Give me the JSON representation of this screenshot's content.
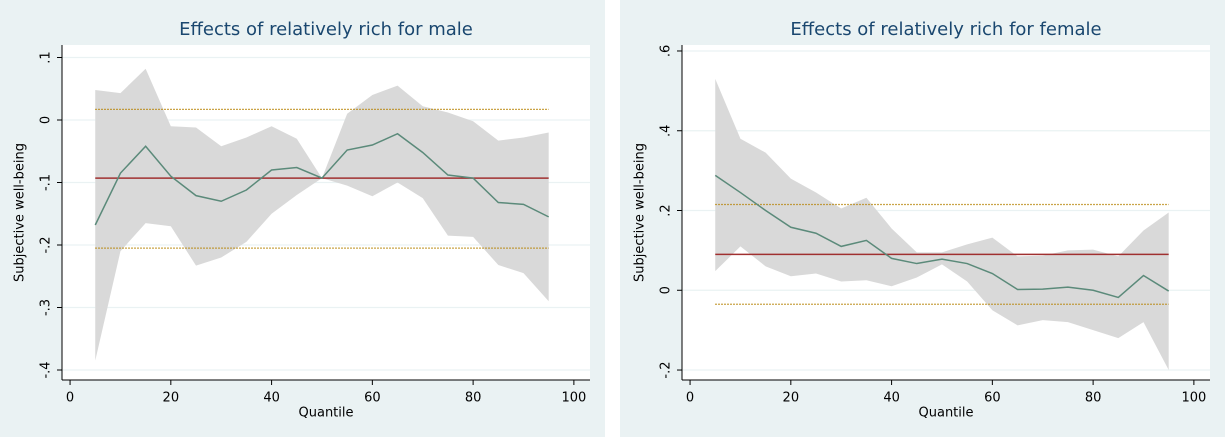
{
  "chart_data": [
    {
      "type": "line",
      "title": "Effects of relatively rich for male",
      "xlabel": "Quantile",
      "ylabel": "Subjective well-being",
      "x": [
        5,
        10,
        15,
        20,
        25,
        30,
        35,
        40,
        45,
        50,
        55,
        60,
        65,
        70,
        75,
        80,
        85,
        90,
        95
      ],
      "xlim": [
        -1.6,
        103.2
      ],
      "xticks": [
        0,
        20,
        40,
        60,
        80,
        100
      ],
      "ylim": [
        -0.416,
        0.12
      ],
      "yticks": [
        {
          "value": -0.4,
          "label": "-.4"
        },
        {
          "value": -0.3,
          "label": "-.3"
        },
        {
          "value": -0.2,
          "label": "-.2"
        },
        {
          "value": -0.1,
          "label": "-.1"
        },
        0,
        {
          "value": 0.1,
          "label": ".1"
        }
      ],
      "grid": true,
      "band": {
        "color": "#d9d9d9",
        "upper": [
          0.048,
          0.043,
          0.082,
          -0.01,
          -0.012,
          -0.042,
          -0.028,
          -0.01,
          -0.03,
          -0.093,
          0.01,
          0.04,
          0.055,
          0.022,
          0.012,
          -0.002,
          -0.033,
          -0.028,
          -0.02
        ],
        "lower": [
          -0.385,
          -0.21,
          -0.165,
          -0.17,
          -0.233,
          -0.22,
          -0.195,
          -0.15,
          -0.12,
          -0.093,
          -0.105,
          -0.122,
          -0.1,
          -0.125,
          -0.185,
          -0.187,
          -0.232,
          -0.245,
          -0.29
        ]
      },
      "series": [
        {
          "color": "#5b8a7a",
          "values": [
            -0.168,
            -0.085,
            -0.042,
            -0.09,
            -0.121,
            -0.13,
            -0.112,
            -0.08,
            -0.076,
            -0.093,
            -0.048,
            -0.04,
            -0.022,
            -0.052,
            -0.088,
            -0.093,
            -0.132,
            -0.135,
            -0.155
          ]
        }
      ],
      "hlines": [
        {
          "value": -0.093,
          "color": "#a03030",
          "style": "solid"
        },
        {
          "value": 0.017,
          "color": "#b8860b",
          "style": "dotted"
        },
        {
          "value": -0.205,
          "color": "#b8860b",
          "style": "dotted"
        }
      ]
    },
    {
      "type": "line",
      "title": "Effects of relatively rich for female",
      "xlabel": "Quantile",
      "ylabel": "Subjective well-being",
      "x": [
        5,
        10,
        15,
        20,
        25,
        30,
        35,
        40,
        45,
        50,
        55,
        60,
        65,
        70,
        75,
        80,
        85,
        90,
        95
      ],
      "xlim": [
        -1.6,
        103.2
      ],
      "xticks": [
        0,
        20,
        40,
        60,
        80,
        100
      ],
      "ylim": [
        -0.225,
        0.615
      ],
      "yticks": [
        {
          "value": -0.2,
          "label": "-.2"
        },
        0,
        {
          "value": 0.2,
          "label": ".2"
        },
        {
          "value": 0.4,
          "label": ".4"
        },
        {
          "value": 0.6,
          "label": ".6"
        }
      ],
      "grid": true,
      "band": {
        "color": "#d9d9d9",
        "upper": [
          0.53,
          0.38,
          0.345,
          0.28,
          0.245,
          0.205,
          0.232,
          0.155,
          0.095,
          0.095,
          0.115,
          0.132,
          0.085,
          0.087,
          0.1,
          0.102,
          0.085,
          0.15,
          0.195
        ],
        "lower": [
          0.048,
          0.11,
          0.06,
          0.035,
          0.042,
          0.022,
          0.025,
          0.01,
          0.032,
          0.065,
          0.022,
          -0.05,
          -0.088,
          -0.075,
          -0.08,
          -0.1,
          -0.12,
          -0.08,
          -0.2
        ]
      },
      "series": [
        {
          "color": "#5b8a7a",
          "values": [
            0.288,
            0.245,
            0.2,
            0.158,
            0.143,
            0.11,
            0.125,
            0.08,
            0.067,
            0.078,
            0.067,
            0.042,
            0.002,
            0.003,
            0.008,
            0.0,
            -0.018,
            0.037,
            -0.002
          ]
        }
      ],
      "hlines": [
        {
          "value": 0.09,
          "color": "#a03030",
          "style": "solid"
        },
        {
          "value": 0.215,
          "color": "#b8860b",
          "style": "dotted"
        },
        {
          "value": -0.035,
          "color": "#b8860b",
          "style": "dotted"
        }
      ]
    }
  ]
}
